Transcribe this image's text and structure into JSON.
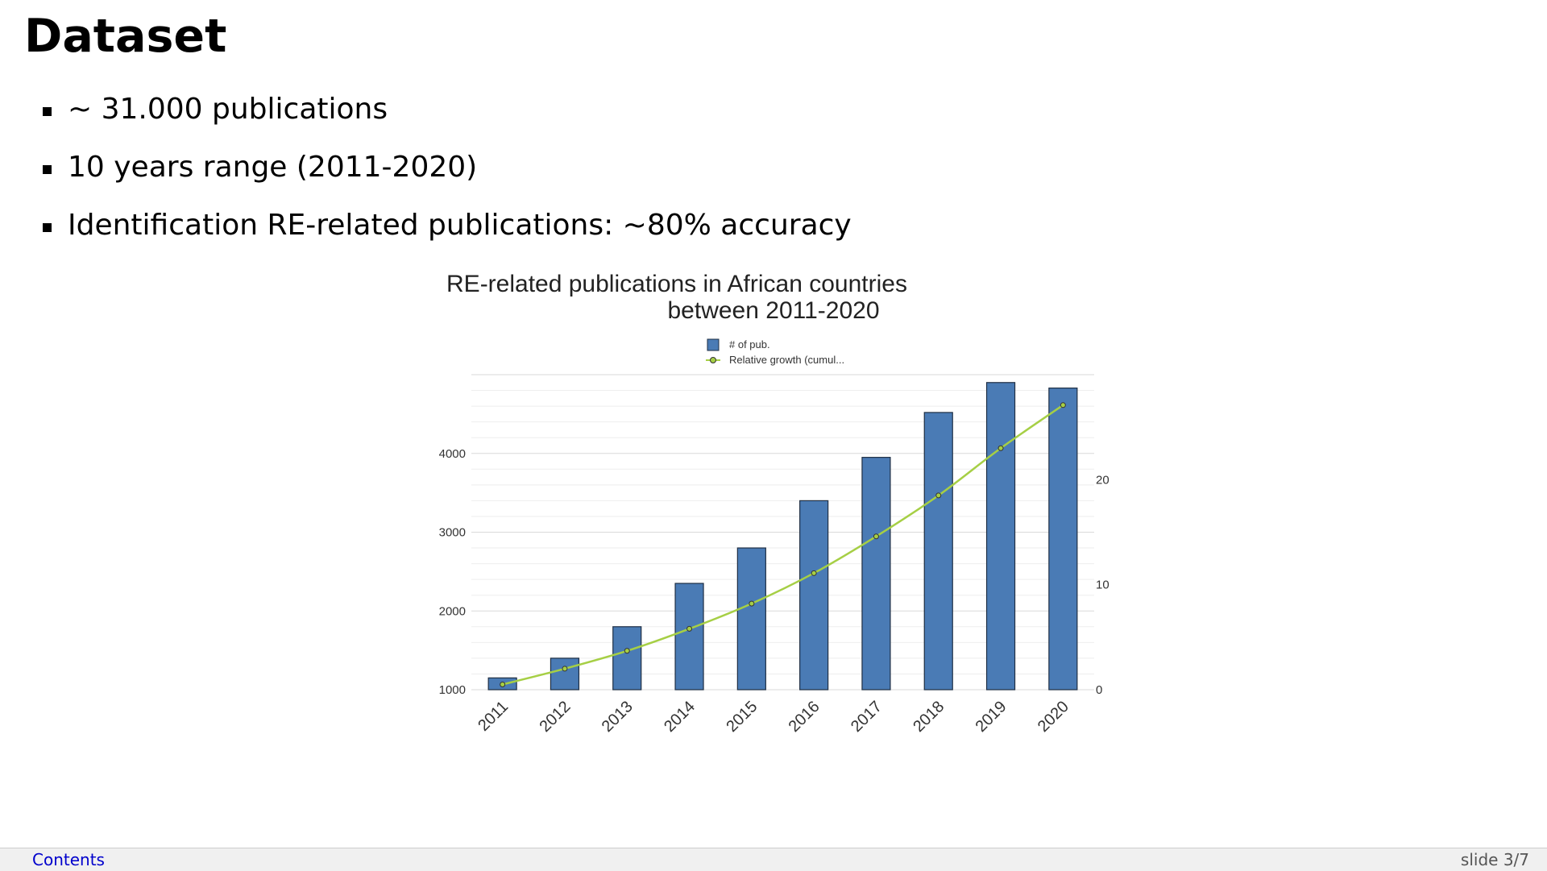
{
  "slide": {
    "title": "Dataset",
    "bullets": [
      "~ 31.000 publications",
      "10 years range (2011-2020)",
      "Identification RE-related publications: ~80% accuracy"
    ]
  },
  "footer": {
    "contents_link": "Contents",
    "page_indicator": "slide 3/7"
  },
  "chart_data": {
    "type": "bar",
    "title_lines": [
      "RE-related publications in African countries",
      "between 2011-2020"
    ],
    "categories": [
      "2011",
      "2012",
      "2013",
      "2014",
      "2015",
      "2016",
      "2017",
      "2018",
      "2019",
      "2020"
    ],
    "series": [
      {
        "name": "# of pub.",
        "type": "bar",
        "axis": "left",
        "color": "#4a7bb5",
        "values": [
          1150,
          1400,
          1800,
          2350,
          2800,
          3400,
          3950,
          4520,
          4900,
          4830
        ]
      },
      {
        "name": "Relative growth (cumul...",
        "type": "line",
        "axis": "right",
        "color": "#a6cf45",
        "values": [
          0.5,
          2.0,
          3.7,
          5.8,
          8.2,
          11.1,
          14.6,
          18.5,
          23.0,
          27.1
        ]
      }
    ],
    "y_left": {
      "ticks": [
        1000,
        2000,
        3000,
        4000
      ],
      "range": [
        1000,
        5000
      ]
    },
    "y_right": {
      "ticks": [
        0,
        10,
        20
      ],
      "range": [
        0,
        30
      ]
    },
    "grid": true,
    "legend_position": "top-center"
  }
}
